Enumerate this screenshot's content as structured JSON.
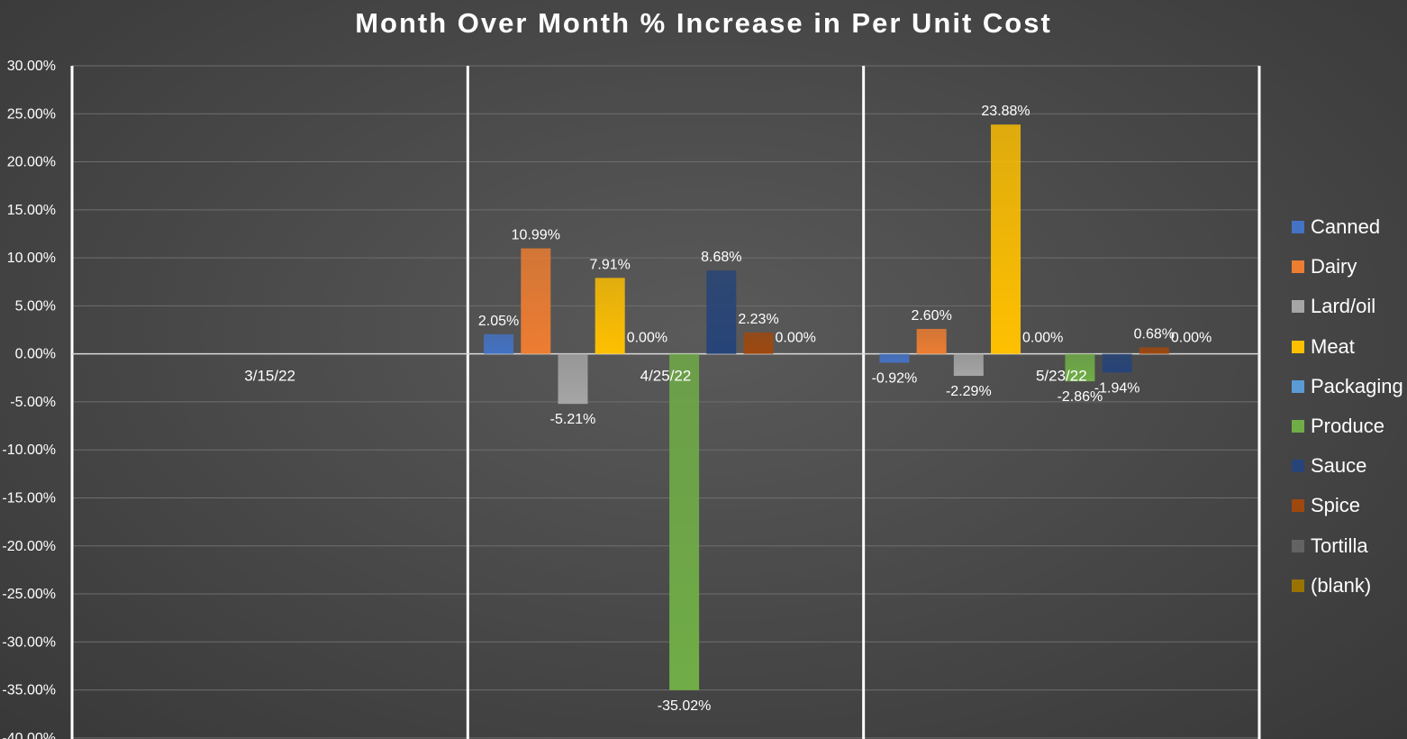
{
  "chart_data": {
    "type": "bar",
    "title": "Month Over Month % Increase in Per Unit Cost",
    "xlabel": "",
    "ylabel": "",
    "ylim": [
      -40,
      30
    ],
    "y_ticks": [
      30,
      25,
      20,
      15,
      10,
      5,
      0,
      -5,
      -10,
      -15,
      -20,
      -25,
      -30,
      -35,
      -40
    ],
    "y_tick_labels": [
      "30.00%",
      "25.00%",
      "20.00%",
      "15.00%",
      "10.00%",
      "5.00%",
      "0.00%",
      "-5.00%",
      "-10.00%",
      "-15.00%",
      "-20.00%",
      "-25.00%",
      "-30.00%",
      "-35.00%",
      "-40.00%"
    ],
    "grid": true,
    "legend_position": "right",
    "categories": [
      "3/15/22",
      "4/25/22",
      "5/23/22"
    ],
    "series": [
      {
        "name": "Canned",
        "color": "#4472c4",
        "values": [
          null,
          2.05,
          -0.92
        ],
        "labels": [
          "",
          "2.05%",
          "-0.92%"
        ]
      },
      {
        "name": "Dairy",
        "color": "#ed7d31",
        "values": [
          null,
          10.99,
          2.6
        ],
        "labels": [
          "",
          "10.99%",
          "2.60%"
        ]
      },
      {
        "name": "Lard/oil",
        "color": "#a5a5a5",
        "values": [
          null,
          -5.21,
          -2.29
        ],
        "labels": [
          "",
          "-5.21%",
          "-2.29%"
        ]
      },
      {
        "name": "Meat",
        "color": "#ffc000",
        "values": [
          null,
          7.91,
          23.88
        ],
        "labels": [
          "",
          "7.91%",
          "23.88%"
        ]
      },
      {
        "name": "Packaging",
        "color": "#5b9bd5",
        "values": [
          null,
          0.0,
          0.0
        ],
        "labels": [
          "",
          "0.00%",
          "0.00%"
        ]
      },
      {
        "name": "Produce",
        "color": "#70ad47",
        "values": [
          null,
          -35.02,
          -2.86
        ],
        "labels": [
          "",
          "-35.02%",
          "-2.86%"
        ]
      },
      {
        "name": "Sauce",
        "color": "#264478",
        "values": [
          null,
          8.68,
          -1.94
        ],
        "labels": [
          "",
          "8.68%",
          "-1.94%"
        ]
      },
      {
        "name": "Spice",
        "color": "#9e480e",
        "values": [
          null,
          2.23,
          0.68
        ],
        "labels": [
          "",
          "2.23%",
          "0.68%"
        ]
      },
      {
        "name": "Tortilla",
        "color": "#636363",
        "values": [
          null,
          0.0,
          0.0
        ],
        "labels": [
          "",
          "0.00%",
          "0.00%"
        ]
      },
      {
        "name": "(blank)",
        "color": "#997300",
        "values": [
          null,
          null,
          null
        ],
        "labels": [
          "",
          "",
          ""
        ]
      }
    ]
  }
}
